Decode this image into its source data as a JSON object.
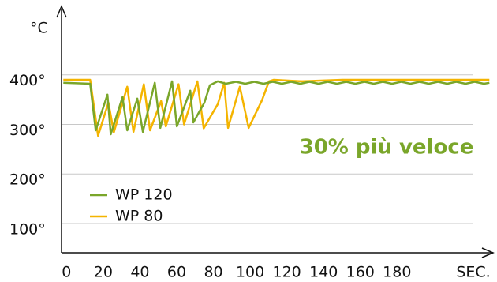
{
  "chart_data": {
    "type": "line",
    "ylabel": "°C",
    "xlabel": "SEC.",
    "annotation": "30% più veloce",
    "xlim": [
      -1,
      234
    ],
    "ylim": [
      41,
      535
    ],
    "xticks": [
      0,
      20,
      40,
      60,
      80,
      100,
      120,
      140,
      160,
      180
    ],
    "yticks": [
      {
        "value": 400,
        "label": "400°"
      },
      {
        "value": 300,
        "label": "300°"
      },
      {
        "value": 200,
        "label": "200°"
      },
      {
        "value": 100,
        "label": "100°"
      }
    ],
    "grid": true,
    "series": [
      {
        "name": "WP 120",
        "color": "#7aa62a",
        "x": [
          0,
          14.6,
          17.6,
          24,
          25.8,
          32.2,
          34.8,
          40.3,
          43.3,
          49.8,
          52.8,
          59.2,
          61.8,
          69.1,
          70.8,
          76.8,
          79.8,
          84.1,
          88.4,
          94,
          99,
          104,
          109,
          114,
          119,
          124,
          129,
          134,
          139,
          144,
          149,
          154,
          159,
          164,
          169,
          174,
          179,
          184,
          189,
          194,
          199,
          204,
          209,
          214,
          219,
          224,
          229,
          232
        ],
        "values": [
          384,
          382,
          288,
          360,
          280,
          355,
          288,
          352,
          285,
          384,
          293,
          387,
          296,
          368,
          304,
          344,
          379,
          387,
          382,
          386,
          382,
          386,
          382,
          386,
          382,
          386,
          382,
          386,
          382,
          386,
          382,
          386,
          382,
          386,
          382,
          386,
          382,
          386,
          382,
          386,
          382,
          386,
          382,
          386,
          382,
          386,
          382,
          384
        ]
      },
      {
        "name": "WP 80",
        "color": "#f4b400",
        "x": [
          0,
          14.6,
          18.9,
          24.5,
          27.5,
          34.8,
          38.2,
          43.8,
          47.2,
          53.2,
          55.8,
          62.7,
          65.7,
          73,
          76.4,
          84.1,
          87.6,
          89.7,
          96.1,
          100.9,
          108.2,
          112,
          114.6,
          130,
          152,
          232
        ],
        "values": [
          390,
          390,
          277,
          344,
          284,
          376,
          285,
          381,
          288,
          347,
          296,
          381,
          300,
          387,
          292,
          341,
          384,
          293,
          376,
          293,
          349,
          387,
          390,
          387,
          390,
          390
        ]
      }
    ]
  }
}
